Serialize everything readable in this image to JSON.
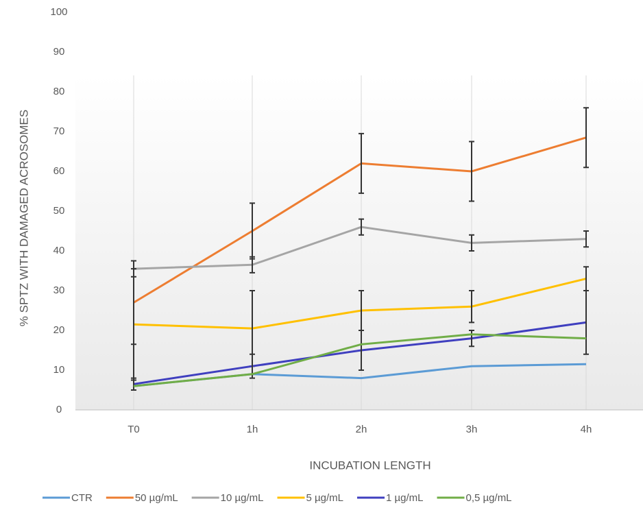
{
  "chart_data": {
    "type": "line",
    "x_label": "INCUBATION LENGTH",
    "y_label": "% SPTZ WITH DAMAGED ACROSOMES",
    "categories": [
      "T0",
      "1h",
      "2h",
      "3h",
      "4h"
    ],
    "ylim": [
      0,
      100
    ],
    "yticks": [
      0,
      10,
      20,
      30,
      40,
      50,
      60,
      70,
      80,
      90,
      100
    ],
    "series": [
      {
        "name": "CTR",
        "color": "#5b9bd5",
        "values": [
          6,
          9,
          8,
          11,
          11.5
        ]
      },
      {
        "name": "50 µg/mL",
        "color": "#ed7d31",
        "values": [
          27,
          45,
          62,
          60,
          68.5
        ],
        "errors": [
          10.5,
          7,
          7.5,
          7.5,
          7.5
        ]
      },
      {
        "name": "10 µg/mL",
        "color": "#a5a5a5",
        "values": [
          35.5,
          36.5,
          46,
          42,
          43
        ],
        "errors": [
          2,
          2,
          2,
          2,
          2
        ]
      },
      {
        "name": "5 µg/mL",
        "color": "#ffc000",
        "values": [
          21.5,
          20.5,
          25,
          26,
          33
        ],
        "errors": [
          14,
          9.5,
          5,
          4,
          3
        ]
      },
      {
        "name": "1 µg/mL",
        "color": "#3f3fbf",
        "values": [
          6.5,
          11,
          15,
          18,
          22
        ],
        "errors": [
          1.5,
          3,
          5,
          2,
          8
        ]
      },
      {
        "name": "0,5 µg/mL",
        "color": "#70ad47",
        "values": [
          6,
          9,
          16.5,
          19,
          18
        ]
      }
    ]
  }
}
